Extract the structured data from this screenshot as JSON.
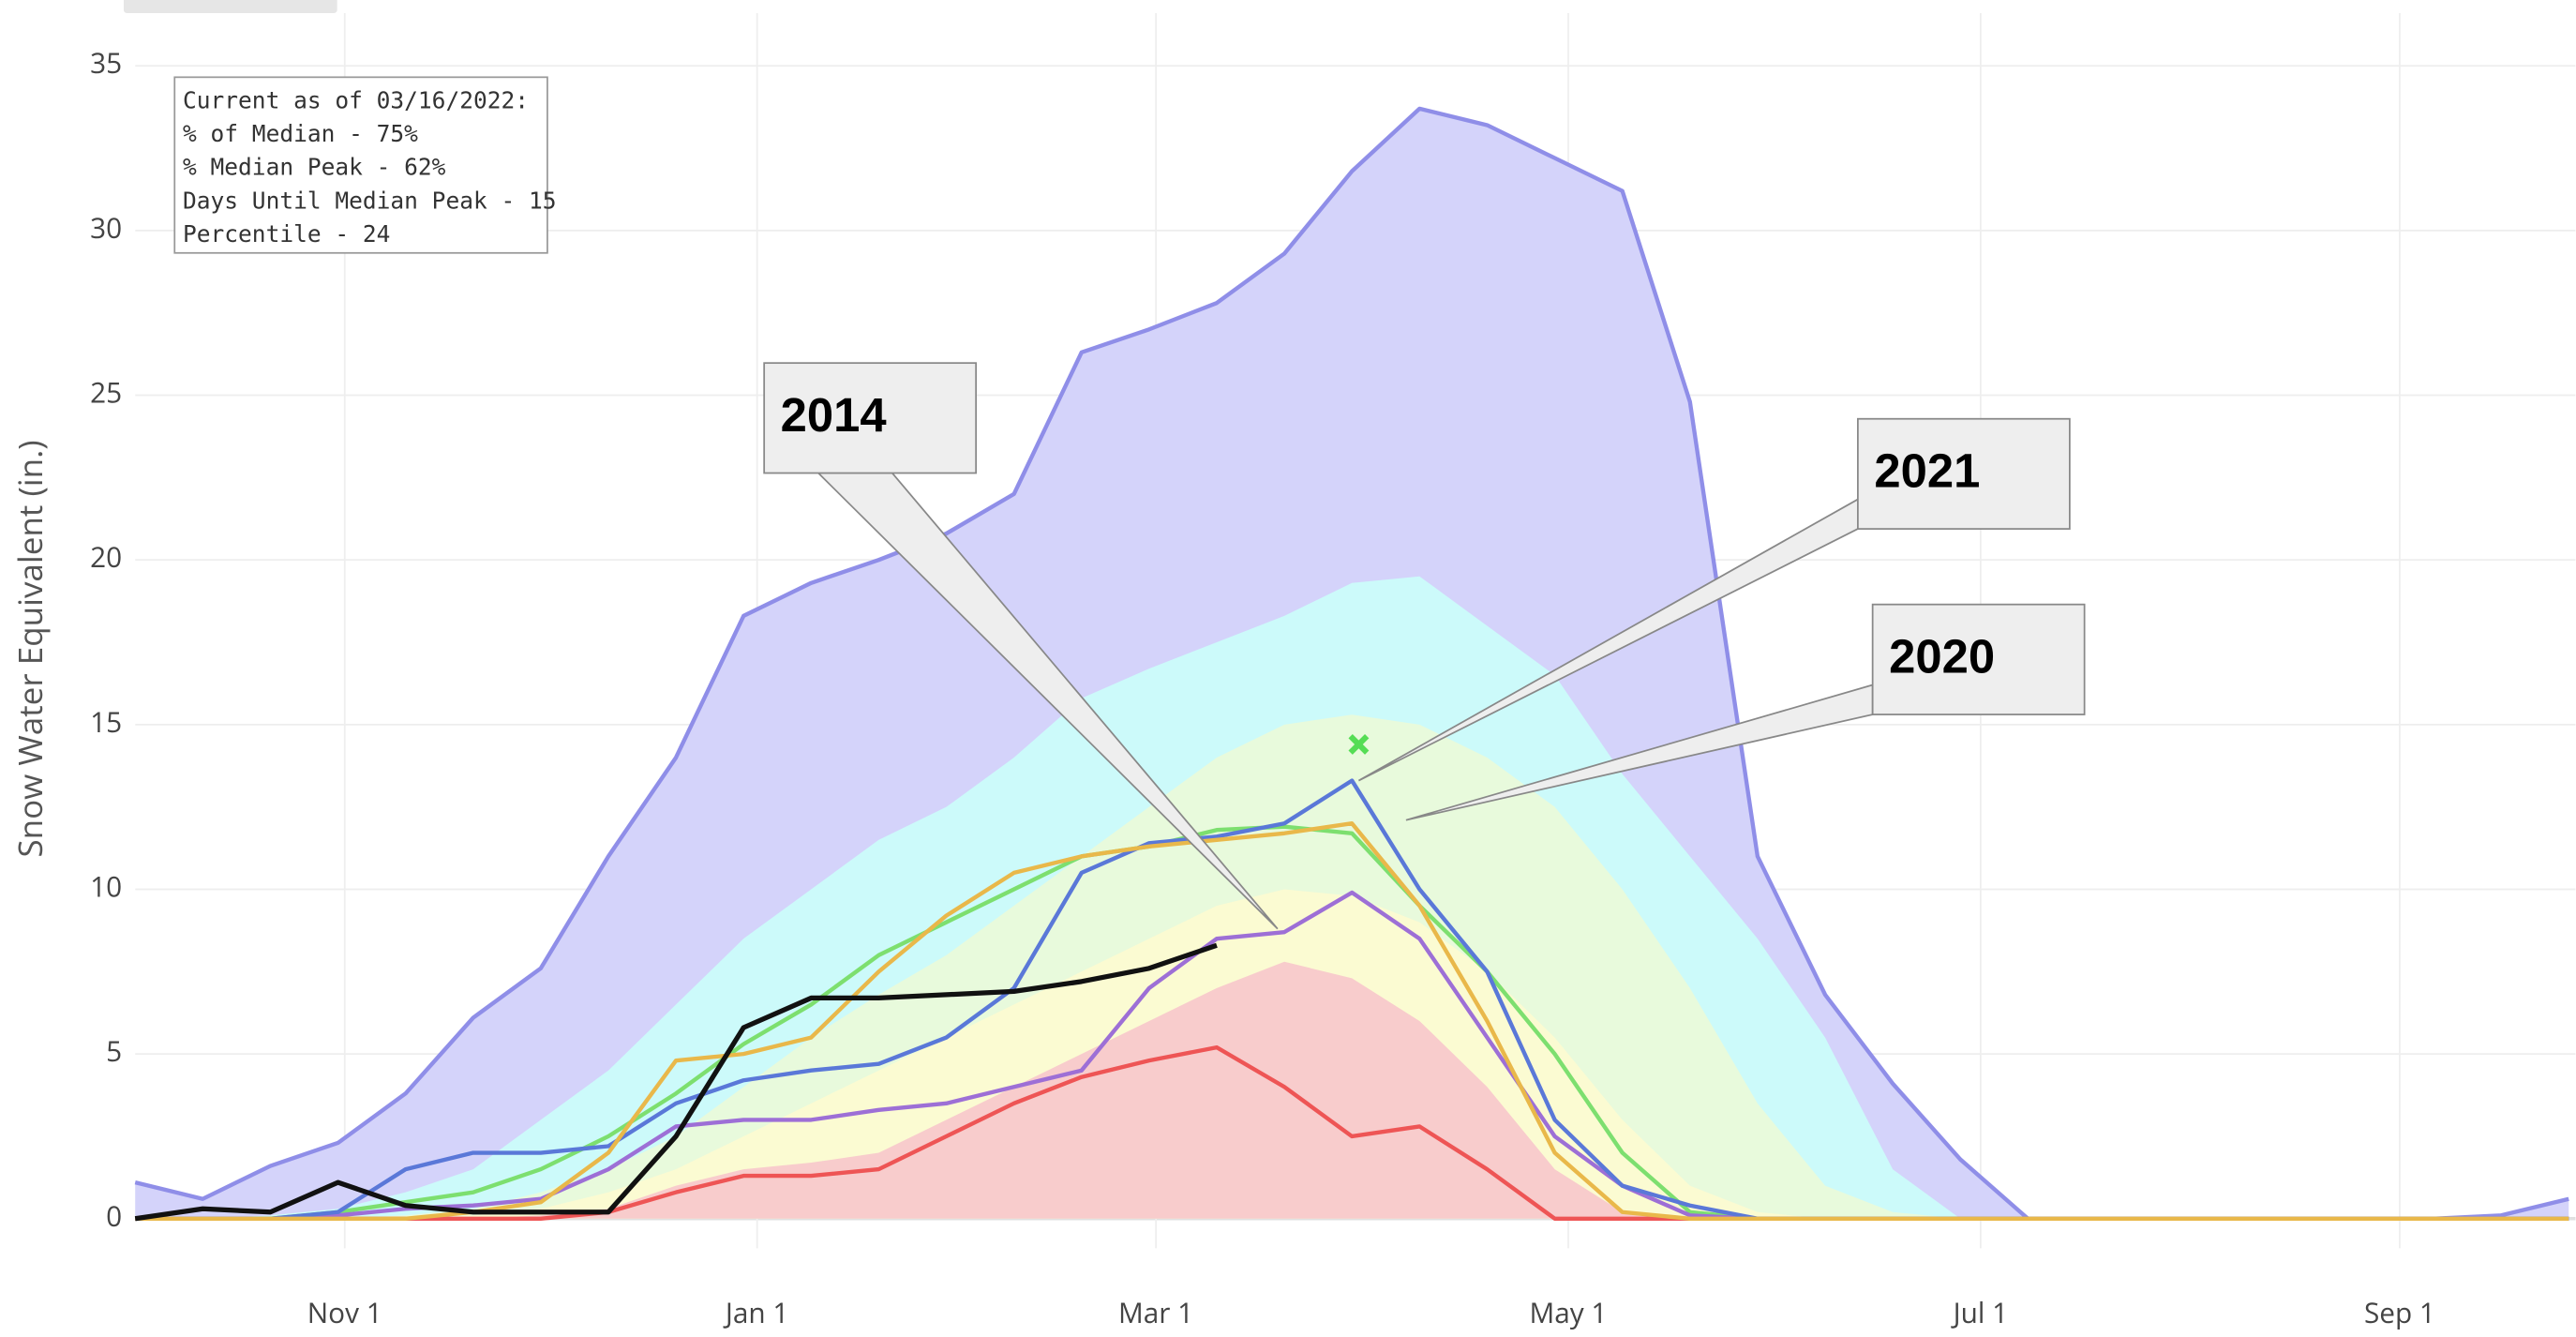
{
  "chart_data": {
    "type": "line",
    "y_label": "Snow Water Equivalent (in.)",
    "info_box": [
      "Current as of 03/16/2022:",
      "% of Median - 75%",
      "% Median Peak - 62%",
      "Days Until Median Peak - 15",
      "Percentile - 24"
    ],
    "x": [
      0,
      10,
      20,
      30,
      40,
      50,
      60,
      70,
      80,
      90,
      100,
      110,
      120,
      130,
      140,
      150,
      160,
      170,
      180,
      190,
      200,
      210,
      220,
      230,
      240,
      250,
      260,
      270,
      280,
      290,
      300,
      310,
      320,
      330,
      340,
      350,
      360
    ],
    "xlim": [
      0,
      361
    ],
    "ylim": [
      -0.9,
      36.6
    ],
    "xticks": [
      {
        "value": 31,
        "label": "Nov 1"
      },
      {
        "value": 92,
        "label": "Jan 1"
      },
      {
        "value": 151,
        "label": "Mar 1"
      },
      {
        "value": 212,
        "label": "May 1"
      },
      {
        "value": 273,
        "label": "Jul 1"
      },
      {
        "value": 335,
        "label": "Sep 1"
      }
    ],
    "yticks": [
      0,
      5,
      10,
      15,
      20,
      25,
      30,
      35
    ],
    "grid": true,
    "series": [
      {
        "color": "#8f8ee8",
        "fill": "#d4d3fa",
        "values": [
          1.1,
          0.6,
          1.6,
          2.3,
          3.8,
          6.1,
          7.6,
          11,
          14,
          18.3,
          19.3,
          20,
          20.8,
          22,
          26.3,
          27,
          27.8,
          29.3,
          31.8,
          33.7,
          33.2,
          32.2,
          31.2,
          24.8,
          11,
          6.8,
          4.1,
          1.8,
          0,
          0,
          0,
          0,
          0,
          0,
          0,
          0.1,
          0.6
        ]
      },
      {
        "fill": "#ccfafa",
        "values": [
          0,
          0,
          0.1,
          0.3,
          0.8,
          1.5,
          3,
          4.5,
          6.5,
          8.5,
          10,
          11.5,
          12.5,
          14,
          15.8,
          16.7,
          17.5,
          18.3,
          19.3,
          19.5,
          18,
          16.5,
          13.5,
          11,
          8.5,
          5.5,
          1.5,
          0,
          0,
          0,
          0,
          0,
          0,
          0,
          0,
          0,
          0
        ]
      },
      {
        "fill": "#e8fadc",
        "values": [
          0,
          0,
          0,
          0,
          0.1,
          0.3,
          0.8,
          1.5,
          2.5,
          4,
          5.5,
          6.8,
          8,
          9.5,
          11,
          12.5,
          14,
          15,
          15.3,
          15,
          14,
          12.5,
          10,
          7,
          3.5,
          1,
          0.2,
          0,
          0,
          0,
          0,
          0,
          0,
          0,
          0,
          0,
          0
        ]
      },
      {
        "fill": "#fbfbd2",
        "values": [
          0,
          0,
          0,
          0,
          0,
          0.1,
          0.3,
          0.8,
          1.5,
          2.5,
          3.5,
          4.5,
          5.5,
          6.5,
          7.5,
          8.5,
          9.5,
          10,
          9.8,
          9,
          7.5,
          5.5,
          3,
          1,
          0.2,
          0,
          0,
          0,
          0,
          0,
          0,
          0,
          0,
          0,
          0,
          0,
          0
        ]
      },
      {
        "fill": "#f8cccc",
        "values": [
          0,
          0,
          0,
          0,
          0,
          0,
          0.1,
          0.3,
          1,
          1.5,
          1.7,
          2,
          3,
          4,
          5,
          6,
          7,
          7.8,
          7.3,
          6,
          4,
          1.5,
          0.2,
          0,
          0,
          0,
          0,
          0,
          0,
          0,
          0,
          0,
          0,
          0,
          0,
          0,
          0
        ]
      },
      {
        "color": "#ee5555",
        "values": [
          0,
          0,
          0,
          0,
          0,
          0,
          0,
          0.2,
          0.8,
          1.3,
          1.3,
          1.5,
          2.5,
          3.5,
          4.3,
          4.8,
          5.2,
          4,
          2.5,
          2.8,
          1.5,
          0,
          0,
          0,
          0,
          0,
          0,
          0,
          0,
          0,
          0,
          0,
          0,
          0,
          0,
          0,
          0
        ]
      },
      {
        "color": "#7ddf6f",
        "values": [
          0,
          0,
          0,
          0.2,
          0.5,
          0.8,
          1.5,
          2.5,
          3.8,
          5.3,
          6.5,
          8,
          9,
          10,
          11,
          11.3,
          11.8,
          11.9,
          11.7,
          9.5,
          7.5,
          5,
          2,
          0.2,
          0,
          0,
          0,
          0,
          0,
          0,
          0,
          0,
          0,
          0,
          0,
          0,
          0
        ]
      },
      {
        "color": "#9d6fd6",
        "values": [
          0,
          0,
          0,
          0.1,
          0.3,
          0.4,
          0.6,
          1.5,
          2.8,
          3,
          3,
          3.3,
          3.5,
          4,
          4.5,
          7,
          8.5,
          8.7,
          9.9,
          8.5,
          5.5,
          2.5,
          1,
          0.1,
          0,
          0,
          0,
          0,
          0,
          0,
          0,
          0,
          0,
          0,
          0,
          0,
          0
        ]
      },
      {
        "color": "#5a78d8",
        "values": [
          0,
          0,
          0,
          0.2,
          1.5,
          2,
          2,
          2.2,
          3.5,
          4.2,
          4.5,
          4.7,
          5.5,
          7,
          10.5,
          11.4,
          11.6,
          12,
          13.3,
          10,
          7.5,
          3,
          1,
          0.4,
          0,
          0,
          0,
          0,
          0,
          0,
          0,
          0,
          0,
          0,
          0,
          0,
          0
        ]
      },
      {
        "color": "#e9b84a",
        "values": [
          0,
          0,
          0,
          0,
          0,
          0.2,
          0.5,
          2,
          4.8,
          5,
          5.5,
          7.5,
          9.2,
          10.5,
          11,
          11.3,
          11.5,
          11.7,
          12,
          9.5,
          6,
          2,
          0.2,
          0,
          0,
          0,
          0,
          0,
          0,
          0,
          0,
          0,
          0,
          0,
          0,
          0,
          0
        ]
      },
      {
        "color": "#111111",
        "values": [
          0,
          0.3,
          0.2,
          1.1,
          0.4,
          0.2,
          0.2,
          0.2,
          2.5,
          5.8,
          6.7,
          6.7,
          6.8,
          6.9,
          7.2,
          7.6,
          8.3,
          null,
          null,
          null,
          null,
          null,
          null,
          null,
          null,
          null,
          null,
          null,
          null,
          null,
          null,
          null,
          null,
          null,
          null,
          null,
          null
        ]
      }
    ],
    "markers": [
      {
        "x": 181,
        "y": 14.4,
        "color": "#55dd55"
      }
    ],
    "annotations": [
      {
        "text": "2014",
        "x": 169,
        "y": 8.8
      },
      {
        "text": "2021",
        "x": 181,
        "y": 13.3
      },
      {
        "text": "2020",
        "x": 188,
        "y": 12.1
      }
    ]
  }
}
